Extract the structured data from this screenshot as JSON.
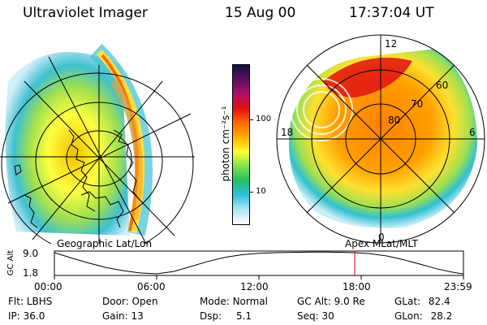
{
  "header": {
    "instrument": "Ultraviolet Imager",
    "date": "15 Aug 00",
    "time": "17:37:04 UT"
  },
  "colorbar": {
    "unit_label": "photon cm⁻²s⁻¹",
    "ticks": [
      "100",
      "10"
    ],
    "colors": [
      "#101040",
      "#5a1060",
      "#b0106a",
      "#e01010",
      "#ff6a00",
      "#ffb000",
      "#ffff30",
      "#80e050",
      "#20c060",
      "#30c0e0",
      "#b0e8f0",
      "#ffffff"
    ]
  },
  "polar_plot": {
    "labels": {
      "top": "12",
      "bottom": "0",
      "left": "18",
      "right": "6",
      "lat60": "60",
      "lat70": "70",
      "lat80": "80"
    }
  },
  "timeline": {
    "left_caption": "Geographic Lat/Lon",
    "right_caption": "Apex MLat/MLT",
    "axis_label": "GC Alt",
    "y_ticks": [
      "9.0",
      "1.8"
    ],
    "x_ticks": [
      "00:00",
      "06:00",
      "12:00",
      "18:00",
      "23:59"
    ],
    "altitude_curve": [
      [
        0.0,
        9.0
      ],
      [
        1.0,
        7.2
      ],
      [
        2.0,
        5.5
      ],
      [
        3.0,
        4.0
      ],
      [
        4.0,
        2.9
      ],
      [
        5.0,
        2.1
      ],
      [
        6.0,
        1.8
      ],
      [
        7.0,
        2.6
      ],
      [
        8.0,
        4.3
      ],
      [
        9.0,
        6.0
      ],
      [
        10.0,
        7.4
      ],
      [
        11.0,
        8.3
      ],
      [
        12.0,
        8.8
      ],
      [
        13.0,
        9.0
      ],
      [
        14.0,
        9.1
      ],
      [
        15.0,
        9.2
      ],
      [
        16.0,
        9.2
      ],
      [
        17.0,
        9.1
      ],
      [
        17.6,
        9.0
      ],
      [
        18.5,
        8.7
      ],
      [
        19.5,
        7.9
      ],
      [
        20.5,
        6.6
      ],
      [
        21.5,
        5.0
      ],
      [
        22.5,
        3.4
      ],
      [
        23.5,
        2.2
      ],
      [
        23.98,
        1.8
      ]
    ],
    "current_time_hours": 17.62
  },
  "status": {
    "flt_label": "Flt:",
    "flt_value": "LBHS",
    "ip_label": "IP:",
    "ip_value": "36.0",
    "door_label": "Door:",
    "door_value": "Open",
    "gain_label": "Gain:",
    "gain_value": "13",
    "mode_label": "Mode:",
    "mode_value": "Normal",
    "dsp_label": "Dsp:",
    "dsp_value": "5.1",
    "gcalt_label": "GC Alt:",
    "gcalt_value": "9.0 Re",
    "seq_label": "Seq:",
    "seq_value": "30",
    "glat_label": "GLat:",
    "glat_value": "82.4",
    "glon_label": "GLon:",
    "glon_value": "28.2"
  }
}
